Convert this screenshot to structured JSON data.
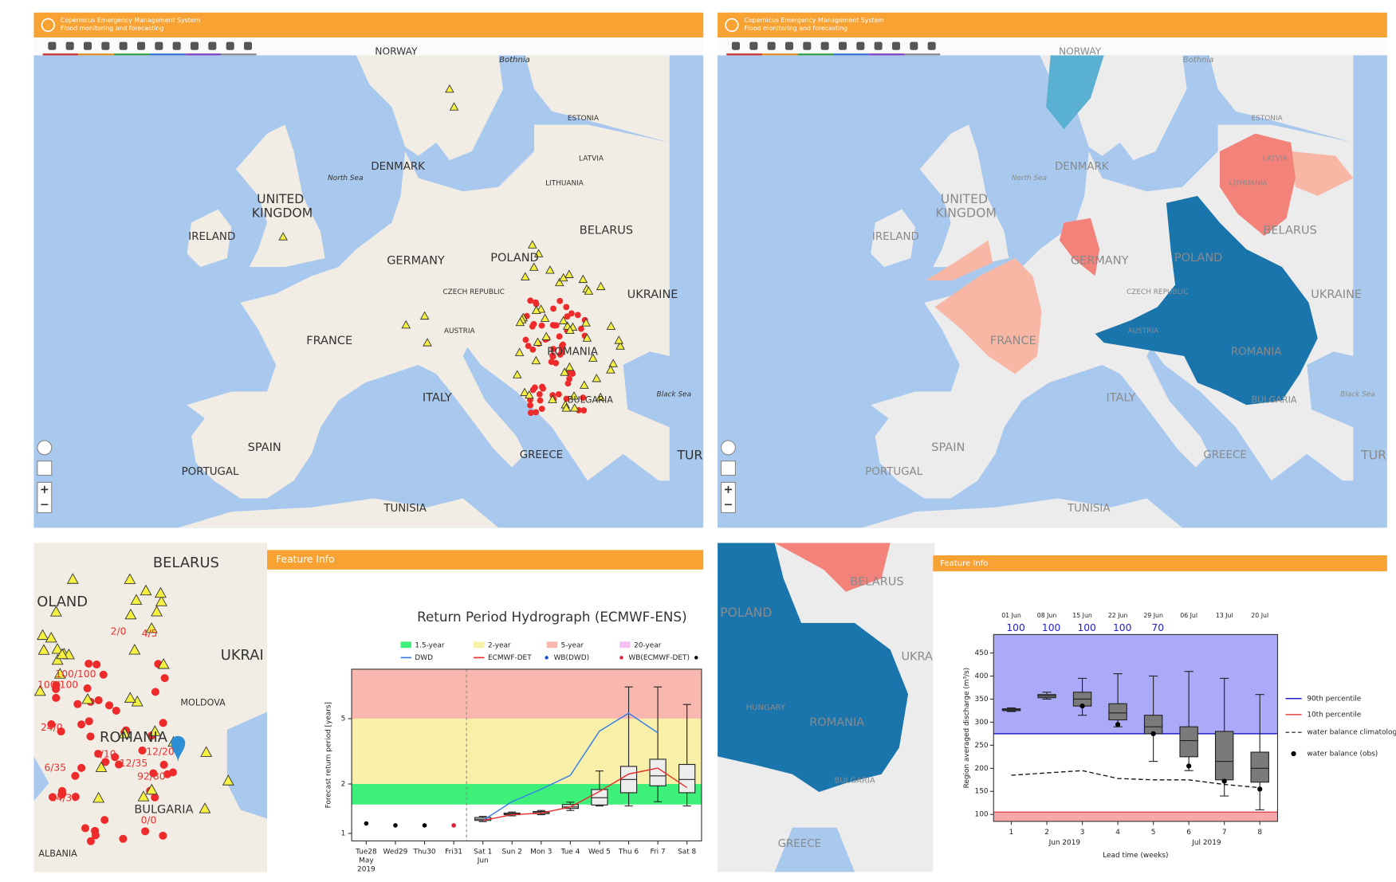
{
  "header": {
    "title": "Copernicus Emergency Management System",
    "subtitle": "Flood monitoring and forecasting"
  },
  "overview_labels": [
    "NORWAY",
    "Bothnia",
    "ESTONIA",
    "LATVIA",
    "LITHUANIA",
    "DENMARK",
    "North Sea",
    "UNITED",
    "KINGDOM",
    "IRELAND",
    "BELARUS",
    "GERMANY",
    "POLAND",
    "CZECH REPUBLIC",
    "UKRAINE",
    "AUSTRIA",
    "FRANCE",
    "ROMANIA",
    "ITALY",
    "BULGARIA",
    "SPAIN",
    "PORTUGAL",
    "GREECE",
    "TUR",
    "TUNISIA",
    "Black Sea"
  ],
  "detail_left_labels": [
    "BELARUS",
    "OLAND",
    "UKRAI",
    "MOLDOVA",
    "ROMANIA",
    "BULGARIA",
    "ALBANIA"
  ],
  "station_labels": [
    "2/0",
    "4/5",
    "100/100",
    "100/100",
    "24/0",
    "12/35",
    "8/10",
    "92/80",
    "6/35",
    "14/30",
    "0/0",
    "12/20"
  ],
  "detail_right_labels": [
    "POLAND",
    "BELARUS",
    "UKRA",
    "HUNGARY",
    "ROMANIA",
    "BULGARIA",
    "GREECE"
  ],
  "feature_info_title": "Feature Info",
  "hydrograph": {
    "type": "hydrograph",
    "title": "Return Period Hydrograph (ECMWF-ENS)",
    "ylabel": "Forecast return period [years]",
    "log_scale": true,
    "ylim": [
      0.9,
      10
    ],
    "yticks": [
      1,
      2,
      5
    ],
    "categories": [
      "Tue28",
      "Wed29",
      "Thu30",
      "Fri31",
      "Sat 1",
      "Sun 2",
      "Mon 3",
      "Tue 4",
      "Wed 5",
      "Thu 6",
      "Fri 7",
      "Sat 8"
    ],
    "month_labels": [
      "May",
      "Jun"
    ],
    "year_label": "2019",
    "bands": [
      {
        "name": "1.5-year",
        "color": "#3cf07a",
        "from": 1.5,
        "to": 2
      },
      {
        "name": "2-year",
        "color": "#f8f0a8",
        "from": 2,
        "to": 5
      },
      {
        "name": "5-year",
        "color": "#f8b8b0",
        "from": 5,
        "to": 10
      },
      {
        "name": "20-year",
        "color": "#f4c0f4"
      }
    ],
    "series": [
      {
        "name": "DWD",
        "color": "#3a7ee8",
        "values": [
          null,
          null,
          null,
          null,
          1.2,
          1.56,
          1.86,
          2.26,
          4.2,
          5.4,
          4.1,
          null
        ]
      },
      {
        "name": "ECMWF-DET",
        "color": "#e83030",
        "values": [
          null,
          null,
          null,
          null,
          1.2,
          1.3,
          1.33,
          1.45,
          1.8,
          2.3,
          2.5,
          1.9
        ]
      }
    ],
    "points": [
      {
        "name": "WB(DWD)",
        "color": "#1a56c8",
        "values": [
          null,
          null,
          null,
          null,
          null,
          null,
          null,
          null,
          null,
          null,
          null,
          null
        ]
      },
      {
        "name": "WB(ECMWF-DET)",
        "color": "#e0203a",
        "values": [
          null,
          null,
          null,
          1.12,
          null,
          null,
          null,
          null,
          null,
          null,
          null,
          null
        ]
      },
      {
        "color": "#000000",
        "values": [
          1.15,
          1.12,
          1.12,
          null,
          null,
          null,
          null,
          null,
          null,
          null,
          null,
          null
        ]
      }
    ],
    "boxes": [
      null,
      null,
      null,
      null,
      [
        1.18,
        1.2,
        1.22,
        1.25,
        1.27
      ],
      [
        1.28,
        1.3,
        1.32,
        1.33,
        1.35
      ],
      [
        1.3,
        1.32,
        1.34,
        1.36,
        1.38
      ],
      [
        1.38,
        1.42,
        1.45,
        1.5,
        1.55
      ],
      [
        1.47,
        1.49,
        1.65,
        1.85,
        2.4
      ],
      [
        1.47,
        1.77,
        2.13,
        2.56,
        7.8
      ],
      [
        1.56,
        1.95,
        2.24,
        2.83,
        7.8
      ],
      [
        1.47,
        1.77,
        2.13,
        2.63,
        6.1
      ]
    ]
  },
  "discharge": {
    "type": "boxplot",
    "xlabel": "Lead time (weeks)",
    "ylabel": "Region averaged discharge (m³/s)",
    "xlim": [
      0.5,
      8.5
    ],
    "xticks": [
      1,
      2,
      3,
      4,
      5,
      6,
      7,
      8
    ],
    "ylim": [
      85,
      490
    ],
    "yticks": [
      100,
      150,
      200,
      250,
      300,
      350,
      400,
      450
    ],
    "week_labels": [
      "01 Jun",
      "08 Jun",
      "15 Jun",
      "22 Jun",
      "29 Jun",
      "06 Jul",
      "13 Jul",
      "20 Jul"
    ],
    "probabilities": [
      100,
      100,
      100,
      100,
      70,
      null,
      null,
      null
    ],
    "month_labels": [
      "Jun 2019",
      "Jul 2019"
    ],
    "percentile_90": {
      "name": "90th percentile",
      "value": 275,
      "color": "#2020d0",
      "fill": "#aaaaf8"
    },
    "percentile_10": {
      "name": "10th percentile",
      "value": 105,
      "color": "#e84040",
      "fill": "#f8a8a8"
    },
    "climatology": {
      "name": "water balance climatology",
      "values": [
        185,
        190,
        195,
        178,
        175,
        175,
        165,
        158
      ]
    },
    "observed": {
      "name": "water balance (obs)",
      "values": [
        null,
        null,
        335,
        295,
        275,
        205,
        172,
        155
      ]
    },
    "boxes": [
      [
        323,
        325,
        327,
        329,
        331
      ],
      [
        350,
        353,
        357,
        360,
        365
      ],
      [
        315,
        335,
        350,
        365,
        395
      ],
      [
        290,
        305,
        320,
        340,
        405
      ],
      [
        215,
        275,
        290,
        315,
        400
      ],
      [
        195,
        225,
        260,
        290,
        410
      ],
      [
        140,
        175,
        215,
        280,
        395
      ],
      [
        110,
        170,
        200,
        235,
        360
      ]
    ]
  }
}
